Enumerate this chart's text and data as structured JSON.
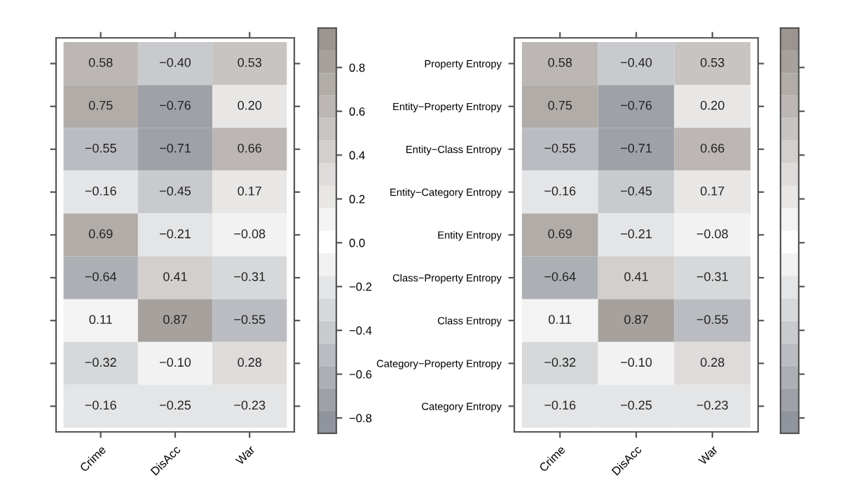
{
  "chart_data": [
    {
      "type": "heatmap",
      "categories": [
        "Crime",
        "DisAcc",
        "War"
      ],
      "y_categories": [
        null,
        null,
        null,
        null,
        null,
        null,
        null,
        null,
        null
      ],
      "cells": [
        [
          0.58,
          -0.4,
          0.53
        ],
        [
          0.75,
          -0.76,
          0.2
        ],
        [
          -0.55,
          -0.71,
          0.66
        ],
        [
          -0.16,
          -0.45,
          0.17
        ],
        [
          0.69,
          -0.21,
          -0.08
        ],
        [
          -0.64,
          0.41,
          -0.31
        ],
        [
          0.11,
          0.87,
          -0.55
        ],
        [
          -0.32,
          -0.1,
          0.28
        ],
        [
          -0.16,
          -0.25,
          -0.23
        ]
      ],
      "cell_labels": [
        [
          "0.58",
          "−0.40",
          "0.53"
        ],
        [
          "0.75",
          "−0.76",
          "0.20"
        ],
        [
          "−0.55",
          "−0.71",
          "0.66"
        ],
        [
          "−0.16",
          "−0.45",
          "0.17"
        ],
        [
          "0.69",
          "−0.21",
          "−0.08"
        ],
        [
          "−0.64",
          "0.41",
          "−0.31"
        ],
        [
          "0.11",
          "0.87",
          "−0.55"
        ],
        [
          "−0.32",
          "−0.10",
          "0.28"
        ],
        [
          "−0.16",
          "−0.25",
          "−0.23"
        ]
      ],
      "clim": [
        -0.87,
        0.98
      ],
      "cticks": [
        {
          "value": -0.8,
          "label": "−0.8"
        },
        {
          "value": -0.6,
          "label": "−0.6"
        },
        {
          "value": -0.4,
          "label": "−0.4"
        },
        {
          "value": -0.2,
          "label": "−0.2"
        },
        {
          "value": 0,
          "label": "0.0"
        },
        {
          "value": 0.2,
          "label": "0.2"
        },
        {
          "value": 0.4,
          "label": "0.4"
        },
        {
          "value": 0.6,
          "label": "0.6"
        },
        {
          "value": 0.8,
          "label": "0.8"
        }
      ]
    },
    {
      "type": "heatmap",
      "categories": [
        "Crime",
        "DisAcc",
        "War"
      ],
      "y_categories": [
        "Property Entropy",
        "Entity−Property Entropy",
        "Entity−Class Entropy",
        "Entity−Category Entropy",
        "Entity Entropy",
        "Class−Property Entropy",
        "Class Entropy",
        "Category−Property Entropy",
        "Category Entropy"
      ],
      "cells": [
        [
          0.58,
          -0.4,
          0.53
        ],
        [
          0.75,
          -0.76,
          0.2
        ],
        [
          -0.55,
          -0.71,
          0.66
        ],
        [
          -0.16,
          -0.45,
          0.17
        ],
        [
          0.69,
          -0.21,
          -0.08
        ],
        [
          -0.64,
          0.41,
          -0.31
        ],
        [
          0.11,
          0.87,
          -0.55
        ],
        [
          -0.32,
          -0.1,
          0.28
        ],
        [
          -0.16,
          -0.25,
          -0.23
        ]
      ],
      "cell_labels": [
        [
          "0.58",
          "−0.40",
          "0.53"
        ],
        [
          "0.75",
          "−0.76",
          "0.20"
        ],
        [
          "−0.55",
          "−0.71",
          "0.66"
        ],
        [
          "−0.16",
          "−0.45",
          "0.17"
        ],
        [
          "0.69",
          "−0.21",
          "−0.08"
        ],
        [
          "−0.64",
          "0.41",
          "−0.31"
        ],
        [
          "0.11",
          "0.87",
          "−0.55"
        ],
        [
          "−0.32",
          "−0.10",
          "0.28"
        ],
        [
          "−0.16",
          "−0.25",
          "−0.23"
        ]
      ]
    }
  ]
}
